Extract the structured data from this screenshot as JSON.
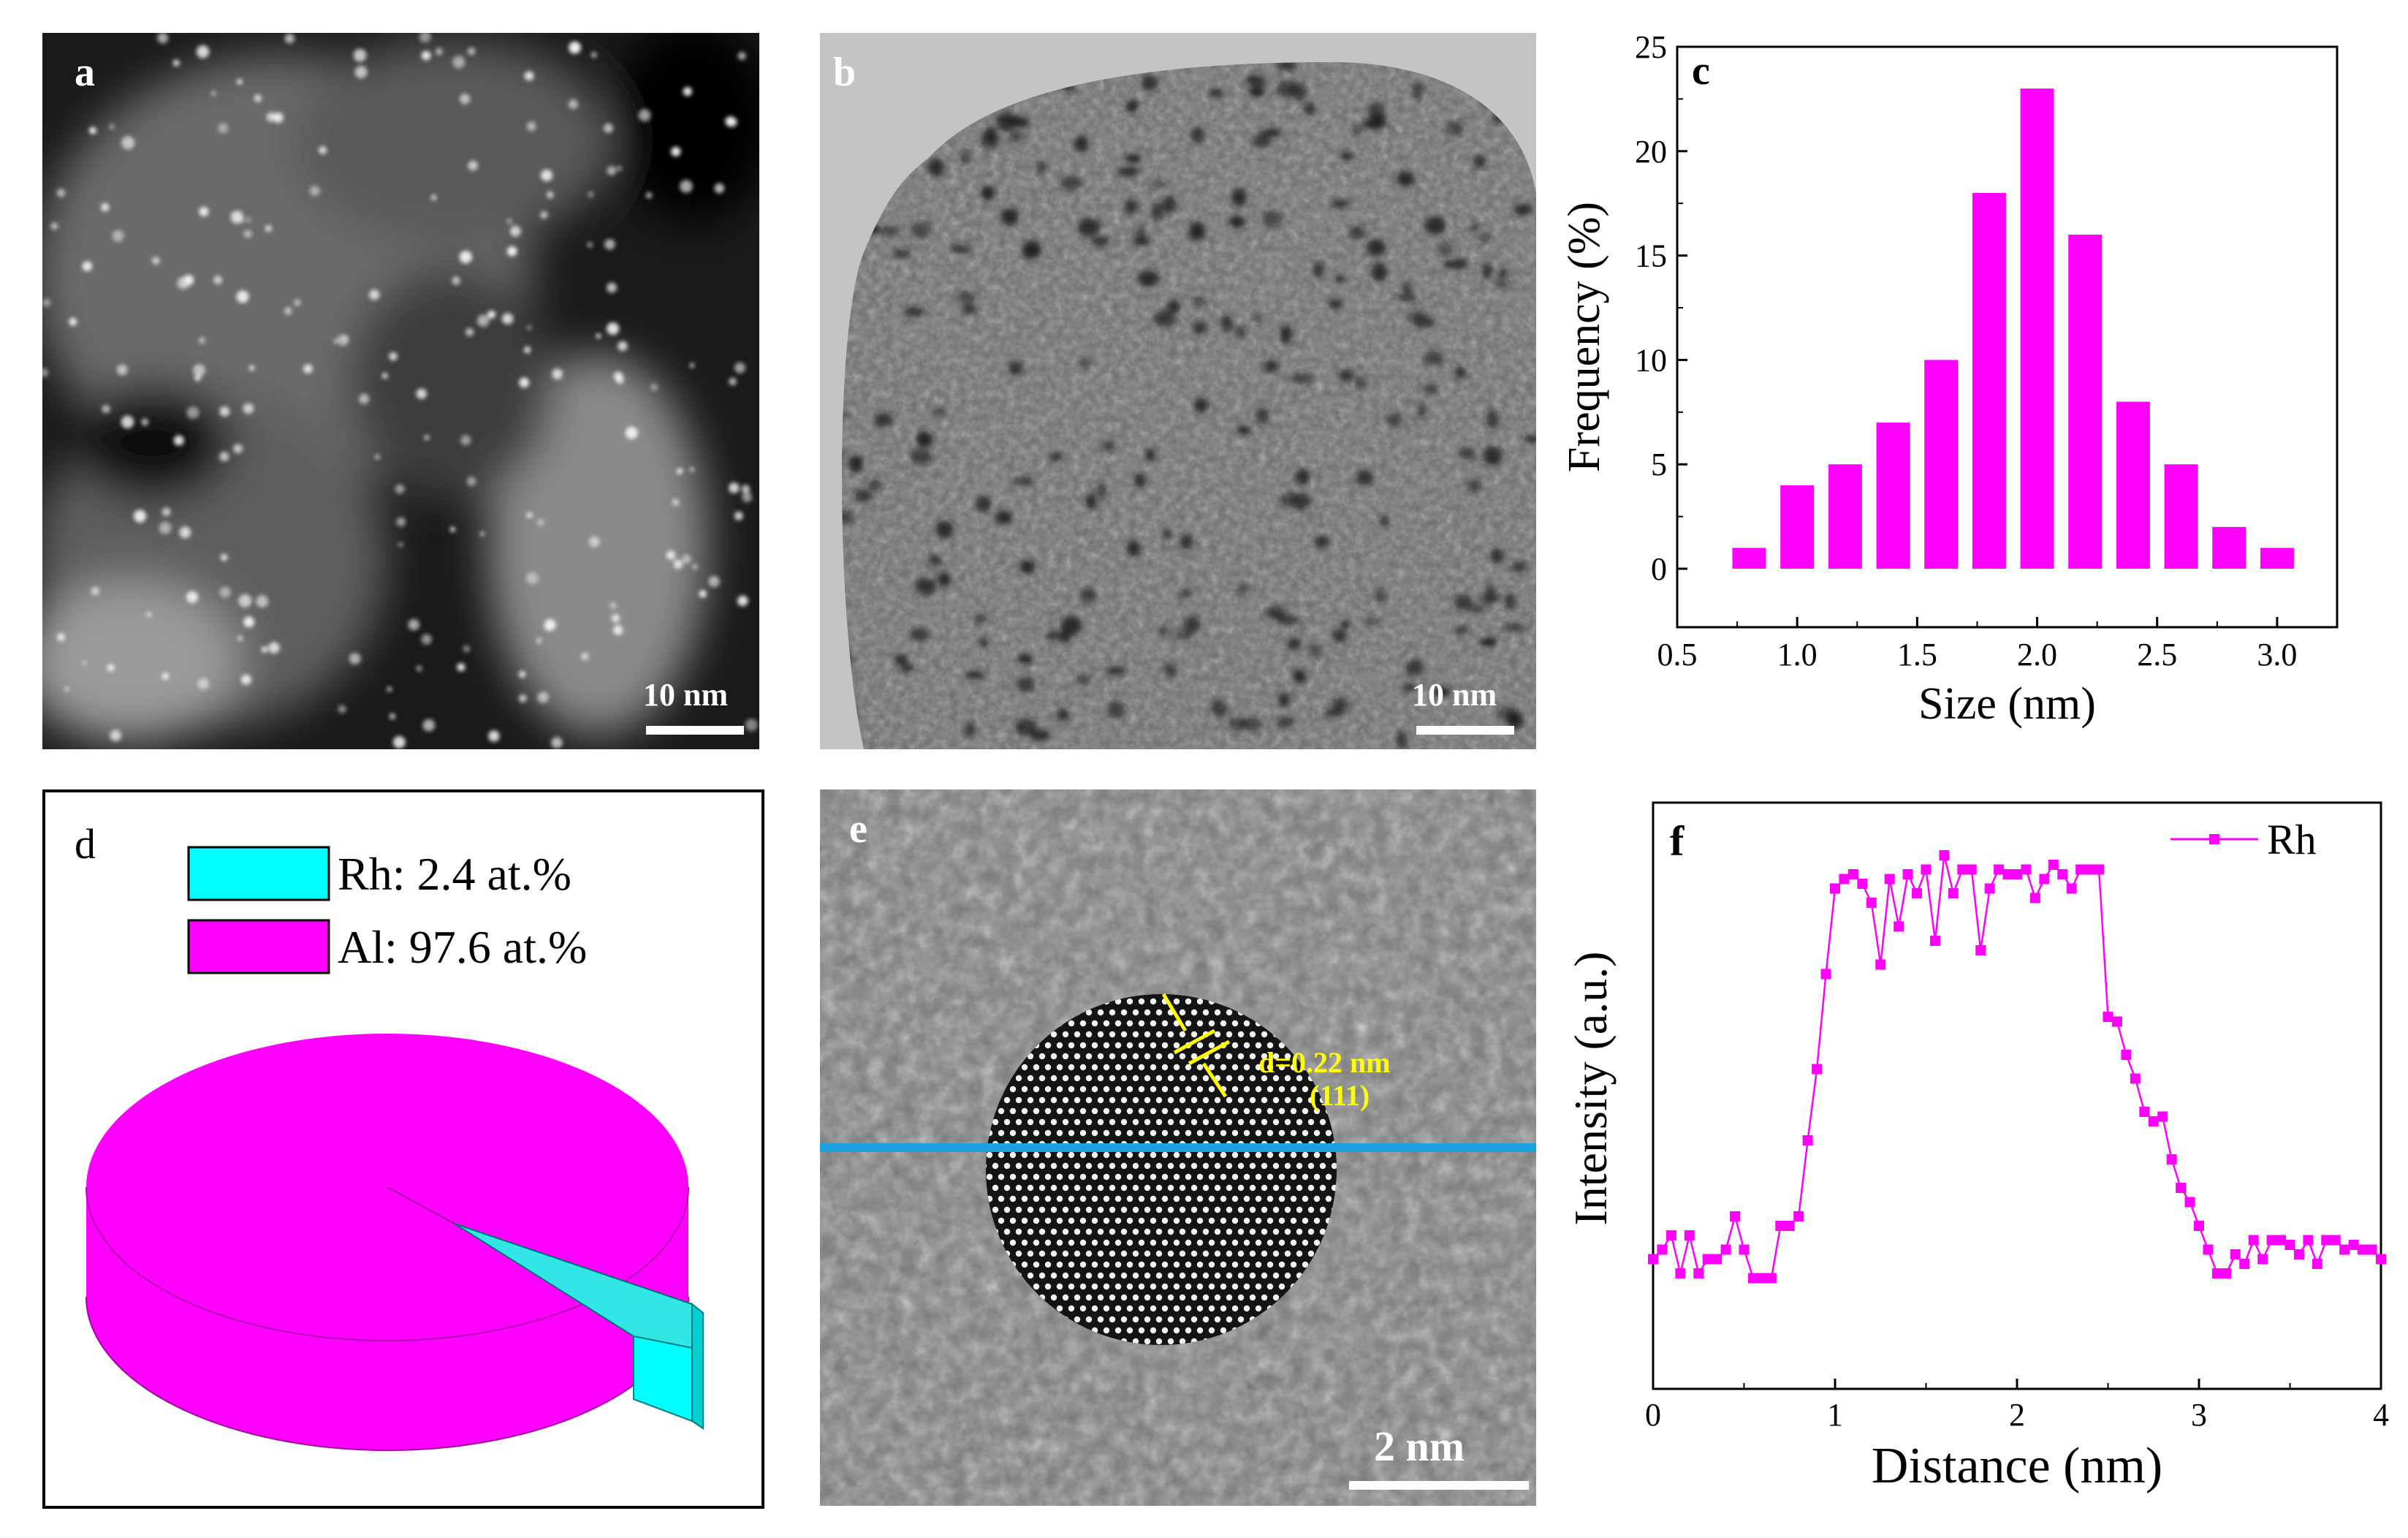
{
  "panels": {
    "a": {
      "letter": "a",
      "scale_bar": "10 nm"
    },
    "b": {
      "letter": "b",
      "scale_bar": "10 nm"
    },
    "c": {
      "letter": "c"
    },
    "d": {
      "letter": "d"
    },
    "e": {
      "letter": "e",
      "scale_bar": "2 nm",
      "lattice_d": "d=0.22 nm",
      "lattice_plane": "(111)"
    },
    "f": {
      "letter": "f"
    }
  },
  "chart_data": [
    {
      "type": "bar",
      "panel": "c",
      "title": "",
      "xlabel": "Size (nm)",
      "ylabel": "Frequency (%)",
      "x": [
        0.8,
        1.0,
        1.2,
        1.4,
        1.6,
        1.8,
        2.0,
        2.2,
        2.4,
        2.6,
        2.8,
        3.0
      ],
      "values": [
        1,
        4,
        5,
        7,
        10,
        18,
        23,
        16,
        8,
        5,
        2,
        1
      ],
      "xlim": [
        0.5,
        3.25
      ],
      "ylim": [
        -2.8,
        25
      ],
      "xticks": [
        "0.5",
        "1.0",
        "1.5",
        "2.0",
        "2.5",
        "3.0"
      ],
      "yticks": [
        "0",
        "5",
        "10",
        "15",
        "20",
        "25"
      ],
      "color": "#ff00ff"
    },
    {
      "type": "pie",
      "panel": "d",
      "style": "3d",
      "labels": [
        "Rh: 2.4 at.%",
        "Al: 97.6 at.%"
      ],
      "values": [
        2.4,
        97.6
      ],
      "colors": [
        "#00ffff",
        "#ff00ff"
      ]
    },
    {
      "type": "line",
      "panel": "f",
      "xlabel": "Distance (nm)",
      "ylabel": "Intensity (a.u.)",
      "legend": "Rh",
      "legend_position": "top-right",
      "xlim": [
        0,
        4
      ],
      "ylim": [
        0,
        1
      ],
      "xticks": [
        "0",
        "1",
        "2",
        "3",
        "4"
      ],
      "color": "#ff00ff",
      "x": [
        0,
        0.05,
        0.1,
        0.15,
        0.2,
        0.25,
        0.3,
        0.35,
        0.4,
        0.45,
        0.5,
        0.55,
        0.6,
        0.65,
        0.7,
        0.75,
        0.8,
        0.85,
        0.9,
        0.95,
        1.0,
        1.05,
        1.1,
        1.15,
        1.2,
        1.25,
        1.3,
        1.35,
        1.4,
        1.45,
        1.5,
        1.55,
        1.6,
        1.65,
        1.7,
        1.75,
        1.8,
        1.85,
        1.9,
        1.95,
        2.0,
        2.05,
        2.1,
        2.15,
        2.2,
        2.25,
        2.3,
        2.35,
        2.4,
        2.45,
        2.5,
        2.55,
        2.6,
        2.65,
        2.7,
        2.75,
        2.8,
        2.85,
        2.9,
        2.95,
        3.0,
        3.05,
        3.1,
        3.15,
        3.2,
        3.25,
        3.3,
        3.35,
        3.4,
        3.45,
        3.5,
        3.55,
        3.6,
        3.65,
        3.7,
        3.75,
        3.8,
        3.85,
        3.9,
        3.95,
        4.0
      ],
      "values": [
        0.15,
        0.17,
        0.2,
        0.12,
        0.2,
        0.12,
        0.15,
        0.15,
        0.17,
        0.24,
        0.17,
        0.11,
        0.11,
        0.11,
        0.22,
        0.22,
        0.24,
        0.4,
        0.55,
        0.75,
        0.93,
        0.95,
        0.96,
        0.94,
        0.9,
        0.77,
        0.95,
        0.85,
        0.96,
        0.92,
        0.97,
        0.82,
        1.0,
        0.92,
        0.97,
        0.97,
        0.8,
        0.93,
        0.97,
        0.96,
        0.96,
        0.97,
        0.91,
        0.95,
        0.98,
        0.96,
        0.93,
        0.97,
        0.97,
        0.97,
        0.66,
        0.65,
        0.58,
        0.53,
        0.46,
        0.44,
        0.45,
        0.36,
        0.3,
        0.27,
        0.22,
        0.17,
        0.12,
        0.12,
        0.16,
        0.14,
        0.19,
        0.15,
        0.19,
        0.19,
        0.18,
        0.16,
        0.19,
        0.14,
        0.19,
        0.19,
        0.17,
        0.18,
        0.17,
        0.17,
        0.15
      ]
    }
  ]
}
